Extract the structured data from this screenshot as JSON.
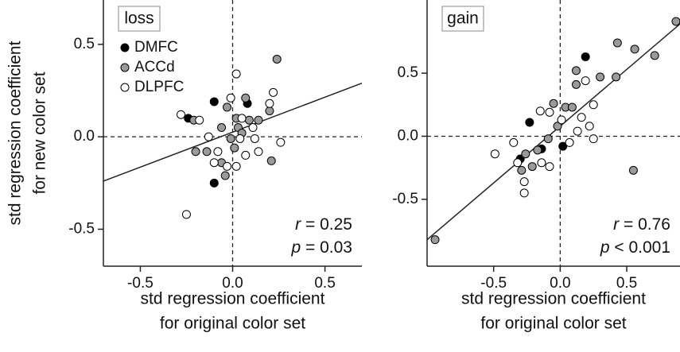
{
  "chart_data": [
    {
      "type": "scatter",
      "panel_label": "loss",
      "ylabel": [
        "std regression coefficient",
        "for new color set"
      ],
      "xlabel": [
        "std regression coefficient",
        "for original color set"
      ],
      "xlim": [
        -0.7,
        0.7
      ],
      "ylim": [
        -0.7,
        0.74
      ],
      "xticks": [
        -0.5,
        {
          "value": 0,
          "label": "0.0"
        },
        0.5
      ],
      "yticks": [
        -0.5,
        {
          "value": 0,
          "label": "0.0"
        },
        0.5
      ],
      "reference_lines": {
        "x": 0,
        "y": 0
      },
      "legend": true,
      "marker_edge": "#000000",
      "series": [
        {
          "name": "DMFC",
          "color": "#000000",
          "x": [
            -0.24,
            -0.1,
            0.08,
            -0.1
          ],
          "values": [
            0.1,
            0.19,
            0.18,
            -0.25
          ]
        },
        {
          "name": "ACCd",
          "color": "#9a9a9a",
          "x": [
            0.24,
            -0.21,
            0.07,
            -0.03,
            0.02,
            -0.2,
            -0.14,
            -0.06,
            0.03,
            0.09,
            0.14,
            0.21,
            0.2,
            -0.04,
            -0.06,
            0.01,
            0.05,
            -0.01
          ],
          "values": [
            0.42,
            0.09,
            0.21,
            0.16,
            0.1,
            -0.08,
            -0.08,
            0.05,
            0.05,
            0.09,
            0.09,
            -0.13,
            0.14,
            -0.21,
            -0.14,
            -0.06,
            0.02,
            -0.01
          ]
        },
        {
          "name": "DLPFC",
          "color": "#ffffff",
          "x": [
            0.02,
            -0.28,
            -0.18,
            -0.25,
            -0.01,
            0.22,
            0.2,
            0.05,
            0.11,
            0.04,
            0.14,
            0.26,
            -0.1,
            -0.03,
            0.02,
            -0.08,
            0.07,
            -0.13,
            0.12
          ],
          "values": [
            0.34,
            0.12,
            0.09,
            -0.42,
            0.21,
            0.24,
            0.18,
            0.1,
            0.05,
            -0.01,
            -0.08,
            -0.03,
            -0.14,
            -0.16,
            -0.16,
            -0.08,
            -0.1,
            0.0,
            -0.01
          ]
        }
      ],
      "fit_line": {
        "x": [
          -0.7,
          0.7
        ],
        "y": [
          -0.24,
          0.29
        ]
      },
      "stats": [
        [
          "r",
          "= 0.25"
        ],
        [
          "p",
          "= 0.03"
        ]
      ]
    },
    {
      "type": "scatter",
      "panel_label": "gain",
      "xlabel": [
        "std regression coefficient",
        "for original color set"
      ],
      "xlim": [
        -1.0,
        0.9
      ],
      "ylim": [
        -1.03,
        1.08
      ],
      "xticks": [
        -0.5,
        {
          "value": 0,
          "label": "0.0"
        },
        0.5
      ],
      "yticks": [
        -0.5,
        {
          "value": 0,
          "label": "0.0"
        },
        0.5
      ],
      "reference_lines": {
        "x": 0,
        "y": 0
      },
      "legend": false,
      "marker_edge": "#000000",
      "series": [
        {
          "name": "DMFC",
          "color": "#000000",
          "x": [
            0.19,
            -0.23,
            -0.14,
            -0.3,
            0.02
          ],
          "values": [
            0.63,
            0.11,
            -0.1,
            -0.18,
            -0.08
          ]
        },
        {
          "name": "ACCd",
          "color": "#9a9a9a",
          "x": [
            0.87,
            0.43,
            0.56,
            0.71,
            0.42,
            0.3,
            0.12,
            0.12,
            -0.05,
            0.04,
            0.09,
            0.55,
            -0.94,
            -0.26,
            -0.21,
            -0.29,
            -0.17,
            -0.02,
            -0.09
          ],
          "values": [
            0.91,
            0.74,
            0.69,
            0.64,
            0.47,
            0.47,
            0.52,
            0.41,
            0.26,
            0.23,
            0.23,
            -0.27,
            -0.82,
            -0.14,
            -0.24,
            -0.27,
            -0.11,
            0.08,
            -0.02
          ]
        },
        {
          "name": "DLPFC",
          "color": "#ffffff",
          "x": [
            0.19,
            -0.08,
            -0.15,
            0.01,
            0.25,
            0.16,
            0.22,
            0.25,
            0.13,
            -0.49,
            -0.35,
            -0.32,
            -0.27,
            -0.27,
            -0.14,
            -0.08,
            0.07
          ],
          "values": [
            0.44,
            0.19,
            0.2,
            0.13,
            0.25,
            0.15,
            0.08,
            -0.02,
            0.04,
            -0.14,
            -0.05,
            -0.21,
            -0.36,
            -0.45,
            -0.21,
            -0.24,
            -0.05
          ]
        }
      ],
      "fit_line": {
        "x": [
          -1.0,
          0.9
        ],
        "y": [
          -0.82,
          0.89
        ]
      },
      "stats": [
        [
          "r",
          "= 0.76"
        ],
        [
          "p",
          "< 0.001"
        ]
      ]
    }
  ]
}
